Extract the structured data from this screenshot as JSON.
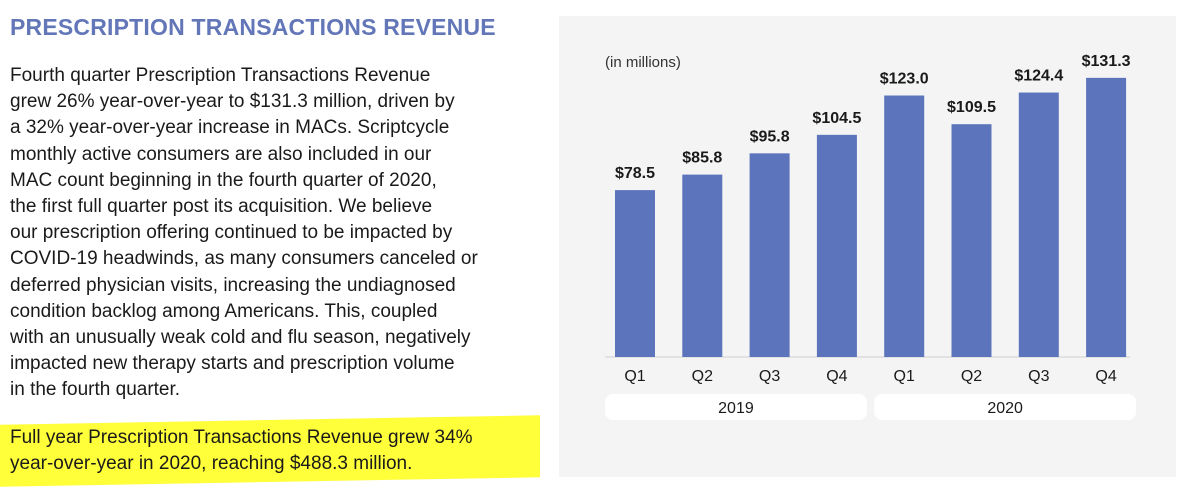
{
  "document": {
    "heading": "PRESCRIPTION TRANSACTIONS REVENUE",
    "paragraph_1": "Fourth quarter Prescription Transactions Revenue\ngrew 26% year-over-year to $131.3 million, driven by\na 32% year-over-year increase in MACs. Scriptcycle\nmonthly active consumers are also included in our\nMAC count beginning in the fourth quarter of 2020,\nthe first full quarter post its acquisition. We believe\nour prescription offering continued to be impacted by\nCOVID-19 headwinds, as many consumers canceled or\ndeferred physician visits, increasing the undiagnosed\ncondition backlog among Americans. This, coupled\nwith an unusually weak cold and flu season, negatively\nimpacted new therapy starts and prescription volume\nin the fourth quarter.",
    "paragraph_2": "Full year Prescription Transactions Revenue grew 34%\nyear-over-year in 2020, reaching $488.3 million.",
    "heading_color": "#6276b8",
    "highlight_color": "#ffff3a"
  },
  "chart_data": {
    "type": "bar",
    "unit_note": "(in millions)",
    "categories": [
      "Q1",
      "Q2",
      "Q3",
      "Q4",
      "Q1",
      "Q2",
      "Q3",
      "Q4"
    ],
    "groups": [
      {
        "label": "2019",
        "indices": [
          0,
          1,
          2,
          3
        ]
      },
      {
        "label": "2020",
        "indices": [
          4,
          5,
          6,
          7
        ]
      }
    ],
    "values": [
      78.5,
      85.8,
      95.8,
      104.5,
      123.0,
      109.5,
      124.4,
      131.3
    ],
    "value_labels": [
      "$78.5",
      "$85.8",
      "$95.8",
      "$104.5",
      "$123.0",
      "$109.5",
      "$124.4",
      "$131.3"
    ],
    "ylim": [
      0,
      135
    ],
    "bar_color": "#5b74bb",
    "grid": false,
    "legend": "none"
  }
}
